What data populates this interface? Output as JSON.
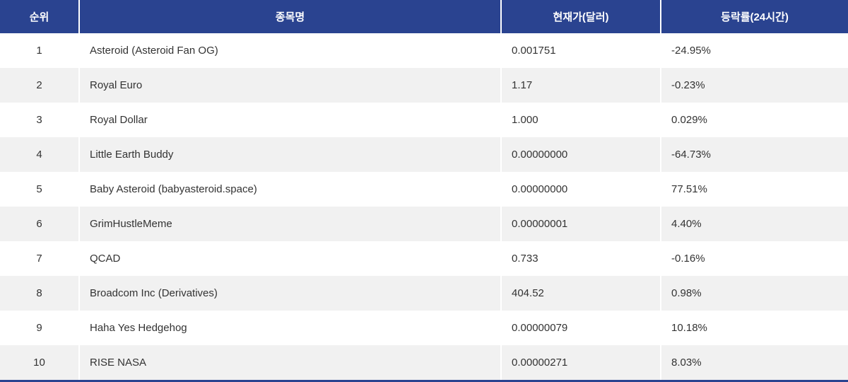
{
  "colors": {
    "header_bg": "#2a4390",
    "header_text": "#ffffff",
    "stripe_bg": "#f1f1f1",
    "row_bg": "#ffffff",
    "body_text": "#333333",
    "divider": "#ffffff",
    "bottom_border": "#2a4390"
  },
  "table": {
    "columns": [
      {
        "key": "rank",
        "label": "순위"
      },
      {
        "key": "name",
        "label": "종목명"
      },
      {
        "key": "price",
        "label": "현재가(달러)"
      },
      {
        "key": "change",
        "label": "등락률(24시간)"
      }
    ],
    "rows": [
      {
        "rank": "1",
        "name": "Asteroid (Asteroid Fan OG)",
        "price": "0.001751",
        "change": "-24.95%"
      },
      {
        "rank": "2",
        "name": "Royal Euro",
        "price": "1.17",
        "change": "-0.23%"
      },
      {
        "rank": "3",
        "name": "Royal Dollar",
        "price": "1.000",
        "change": "0.029%"
      },
      {
        "rank": "4",
        "name": "Little Earth Buddy",
        "price": "0.00000000",
        "change": "-64.73%"
      },
      {
        "rank": "5",
        "name": "Baby Asteroid (babyasteroid.space)",
        "price": "0.00000000",
        "change": "77.51%"
      },
      {
        "rank": "6",
        "name": "GrimHustleMeme",
        "price": "0.00000001",
        "change": "4.40%"
      },
      {
        "rank": "7",
        "name": "QCAD",
        "price": "0.733",
        "change": "-0.16%"
      },
      {
        "rank": "8",
        "name": "Broadcom Inc (Derivatives)",
        "price": "404.52",
        "change": "0.98%"
      },
      {
        "rank": "9",
        "name": "Haha Yes Hedgehog",
        "price": "0.00000079",
        "change": "10.18%"
      },
      {
        "rank": "10",
        "name": "RISE NASA",
        "price": "0.00000271",
        "change": "8.03%"
      }
    ]
  }
}
